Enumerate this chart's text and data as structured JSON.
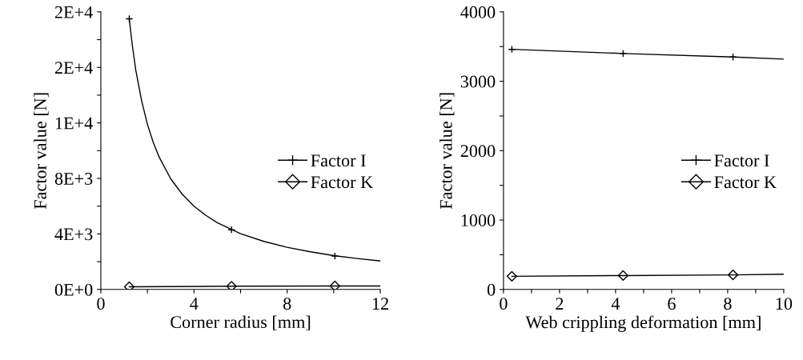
{
  "chart_data": [
    {
      "type": "line",
      "xlabel": "Corner radius [mm]",
      "ylabel": "Factor value [N]",
      "xlim": [
        0,
        12
      ],
      "xticks": [
        0,
        {
          "value": 2,
          "label": null
        },
        4,
        {
          "value": 6,
          "label": null
        },
        8,
        {
          "value": 10,
          "label": null
        },
        12
      ],
      "ylim": [
        0,
        20000
      ],
      "yticks": [
        {
          "value": 0,
          "label": "0E+0"
        },
        {
          "value": 2000,
          "label": null
        },
        {
          "value": 4000,
          "label": "4E+3"
        },
        {
          "value": 6000,
          "label": null
        },
        {
          "value": 8000,
          "label": "8E+3"
        },
        {
          "value": 10000,
          "label": null
        },
        {
          "value": 12000,
          "label": "1E+4"
        },
        {
          "value": 14000,
          "label": null
        },
        {
          "value": 16000,
          "label": "2E+4"
        },
        {
          "value": 18000,
          "label": null
        },
        {
          "value": 20000,
          "label": "2E+4"
        }
      ],
      "grid": false,
      "legend": "right",
      "series": [
        {
          "color": "#000000",
          "marker": "none",
          "x": [
            1.22,
            1.35,
            1.5,
            1.75,
            2,
            2.25,
            2.5,
            3,
            3.5,
            4,
            4.5,
            5,
            6,
            7,
            8,
            9,
            10,
            11,
            12
          ],
          "values": [
            19500,
            17600,
            15800,
            13600,
            11900,
            10600,
            9550,
            7970,
            6850,
            6000,
            5350,
            4810,
            4020,
            3460,
            3040,
            2710,
            2440,
            2230,
            2050
          ]
        },
        {
          "type": "scatter",
          "name": "Factor I",
          "color": "#000000",
          "marker": "cross",
          "x": [
            1.22,
            5.61,
            10.05
          ],
          "values": [
            19500,
            4300,
            2400
          ]
        },
        {
          "color": "#000000",
          "marker": "none",
          "x": [
            1.22,
            5.61,
            10.05,
            12
          ],
          "values": [
            190,
            230,
            250,
            250
          ]
        },
        {
          "type": "scatter",
          "name": "Factor K",
          "color": "#000000",
          "marker": "diamond",
          "x": [
            1.22,
            5.61,
            10.05
          ],
          "values": [
            190,
            230,
            250
          ]
        }
      ]
    },
    {
      "type": "line",
      "xlabel": "Web crippling deformation [mm]",
      "ylabel": "Factor value [N]",
      "xlim": [
        0,
        10
      ],
      "xticks": [
        0,
        {
          "value": 1,
          "label": null
        },
        2,
        {
          "value": 3,
          "label": null
        },
        4,
        {
          "value": 5,
          "label": null
        },
        6,
        {
          "value": 7,
          "label": null
        },
        8,
        {
          "value": 9,
          "label": null
        },
        10
      ],
      "ylim": [
        0,
        4000
      ],
      "yticks": [
        0,
        {
          "value": 500,
          "label": null
        },
        1000,
        {
          "value": 1500,
          "label": null
        },
        2000,
        {
          "value": 2500,
          "label": null
        },
        3000,
        {
          "value": 3500,
          "label": null
        },
        4000
      ],
      "grid": false,
      "legend": "right",
      "series": [
        {
          "color": "#000000",
          "marker": "none",
          "x": [
            0.3,
            4.27,
            8.19,
            10
          ],
          "values": [
            3460,
            3400,
            3350,
            3320
          ]
        },
        {
          "type": "scatter",
          "name": "Factor I",
          "color": "#000000",
          "marker": "cross",
          "x": [
            0.3,
            4.27,
            8.19
          ],
          "values": [
            3460,
            3400,
            3350
          ]
        },
        {
          "color": "#000000",
          "marker": "none",
          "x": [
            0.3,
            4.27,
            8.19,
            10
          ],
          "values": [
            190,
            200,
            210,
            220
          ]
        },
        {
          "type": "scatter",
          "name": "Factor K",
          "color": "#000000",
          "marker": "diamond",
          "x": [
            0.3,
            4.27,
            8.19
          ],
          "values": [
            190,
            200,
            210
          ]
        }
      ]
    }
  ]
}
